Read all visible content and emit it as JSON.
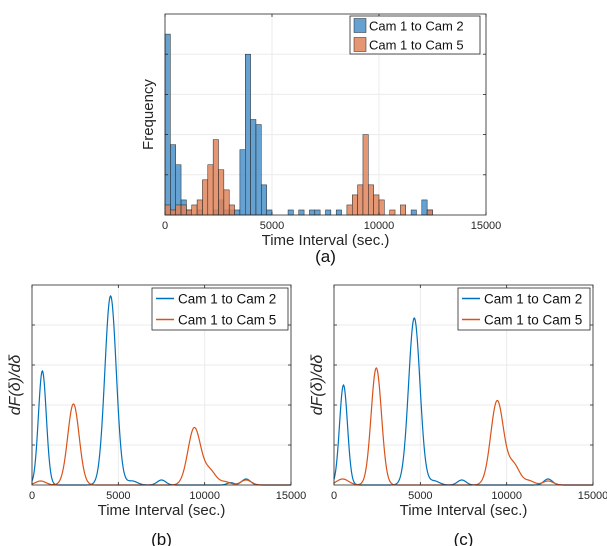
{
  "chart_data": [
    {
      "type": "bar",
      "title": "",
      "xlabel": "Time Interval (sec.)",
      "ylabel": "Frequency",
      "caption": "(a)",
      "xlim": [
        0,
        15000
      ],
      "xticks": [
        0,
        5000,
        10000,
        15000
      ],
      "ylim": [
        0,
        40
      ],
      "grid": true,
      "legend_position": "top-right",
      "bin_width": 250,
      "series": [
        {
          "name": "Cam 1 to Cam 2",
          "color": "#4a90c9",
          "bins": [
            {
              "x": 125,
              "y": 36
            },
            {
              "x": 375,
              "y": 14
            },
            {
              "x": 625,
              "y": 10
            },
            {
              "x": 875,
              "y": 3
            },
            {
              "x": 1125,
              "y": 1
            },
            {
              "x": 1625,
              "y": 1
            },
            {
              "x": 2375,
              "y": 1
            },
            {
              "x": 2625,
              "y": 3
            },
            {
              "x": 2875,
              "y": 1
            },
            {
              "x": 3125,
              "y": 1
            },
            {
              "x": 3375,
              "y": 1
            },
            {
              "x": 3625,
              "y": 13
            },
            {
              "x": 3875,
              "y": 32
            },
            {
              "x": 4125,
              "y": 19
            },
            {
              "x": 4375,
              "y": 18
            },
            {
              "x": 4625,
              "y": 6
            },
            {
              "x": 4875,
              "y": 1
            },
            {
              "x": 5875,
              "y": 1
            },
            {
              "x": 6375,
              "y": 1
            },
            {
              "x": 6875,
              "y": 1
            },
            {
              "x": 7125,
              "y": 1
            },
            {
              "x": 7625,
              "y": 1
            },
            {
              "x": 8125,
              "y": 1
            },
            {
              "x": 11625,
              "y": 1
            },
            {
              "x": 12125,
              "y": 3
            },
            {
              "x": 12375,
              "y": 1
            }
          ]
        },
        {
          "name": "Cam 1 to Cam 5",
          "color": "#e0855c",
          "bins": [
            {
              "x": 125,
              "y": 2
            },
            {
              "x": 375,
              "y": 1
            },
            {
              "x": 625,
              "y": 2
            },
            {
              "x": 875,
              "y": 2
            },
            {
              "x": 1125,
              "y": 1
            },
            {
              "x": 1375,
              "y": 2
            },
            {
              "x": 1625,
              "y": 3
            },
            {
              "x": 1875,
              "y": 7
            },
            {
              "x": 2125,
              "y": 10
            },
            {
              "x": 2375,
              "y": 15
            },
            {
              "x": 2625,
              "y": 9
            },
            {
              "x": 2875,
              "y": 5
            },
            {
              "x": 3125,
              "y": 2
            },
            {
              "x": 8625,
              "y": 2
            },
            {
              "x": 8875,
              "y": 4
            },
            {
              "x": 9125,
              "y": 6
            },
            {
              "x": 9375,
              "y": 16
            },
            {
              "x": 9625,
              "y": 6
            },
            {
              "x": 9875,
              "y": 4
            },
            {
              "x": 10125,
              "y": 3
            },
            {
              "x": 10625,
              "y": 1
            },
            {
              "x": 11125,
              "y": 2
            },
            {
              "x": 12375,
              "y": 1
            }
          ]
        }
      ]
    },
    {
      "type": "line",
      "title": "",
      "xlabel": "Time Interval (sec.)",
      "ylabel": "dF(δ)/dδ",
      "caption": "(b)",
      "xlim": [
        0,
        15000
      ],
      "xticks": [
        0,
        5000,
        10000,
        15000
      ],
      "ylim": [
        0,
        1
      ],
      "grid": true,
      "legend_position": "top-right",
      "series": [
        {
          "name": "Cam 1 to Cam 2",
          "color": "#0072bd",
          "components": [
            {
              "mu": 600,
              "sigma": 230,
              "amp": 0.57
            },
            {
              "mu": 4550,
              "sigma": 330,
              "amp": 0.945
            },
            {
              "mu": 5800,
              "sigma": 300,
              "amp": 0.02
            },
            {
              "mu": 7500,
              "sigma": 250,
              "amp": 0.025
            },
            {
              "mu": 11500,
              "sigma": 200,
              "amp": 0.012
            },
            {
              "mu": 12400,
              "sigma": 250,
              "amp": 0.03
            }
          ]
        },
        {
          "name": "Cam 1 to Cam 5",
          "color": "#d95319",
          "components": [
            {
              "mu": 500,
              "sigma": 300,
              "amp": 0.02
            },
            {
              "mu": 2400,
              "sigma": 330,
              "amp": 0.405
            },
            {
              "mu": 9400,
              "sigma": 370,
              "amp": 0.285
            },
            {
              "mu": 10300,
              "sigma": 350,
              "amp": 0.07
            },
            {
              "mu": 11200,
              "sigma": 300,
              "amp": 0.015
            },
            {
              "mu": 12400,
              "sigma": 300,
              "amp": 0.025
            }
          ]
        }
      ]
    },
    {
      "type": "line",
      "title": "",
      "xlabel": "Time Interval (sec.)",
      "ylabel": "dF(δ)/dδ",
      "caption": "(c)",
      "xlim": [
        0,
        15000
      ],
      "xticks": [
        0,
        5000,
        10000,
        15000
      ],
      "ylim": [
        0,
        1
      ],
      "grid": true,
      "legend_position": "top-right",
      "series": [
        {
          "name": "Cam 1 to Cam 2",
          "color": "#0072bd",
          "components": [
            {
              "mu": 550,
              "sigma": 230,
              "amp": 0.5
            },
            {
              "mu": 4650,
              "sigma": 330,
              "amp": 0.835
            },
            {
              "mu": 5800,
              "sigma": 300,
              "amp": 0.02
            },
            {
              "mu": 7400,
              "sigma": 250,
              "amp": 0.025
            },
            {
              "mu": 12400,
              "sigma": 250,
              "amp": 0.03
            }
          ]
        },
        {
          "name": "Cam 1 to Cam 5",
          "color": "#d95319",
          "components": [
            {
              "mu": 500,
              "sigma": 350,
              "amp": 0.03
            },
            {
              "mu": 2450,
              "sigma": 300,
              "amp": 0.585
            },
            {
              "mu": 9450,
              "sigma": 370,
              "amp": 0.42
            },
            {
              "mu": 10400,
              "sigma": 350,
              "amp": 0.1
            },
            {
              "mu": 11300,
              "sigma": 300,
              "amp": 0.02
            },
            {
              "mu": 12400,
              "sigma": 300,
              "amp": 0.02
            }
          ]
        }
      ]
    }
  ]
}
